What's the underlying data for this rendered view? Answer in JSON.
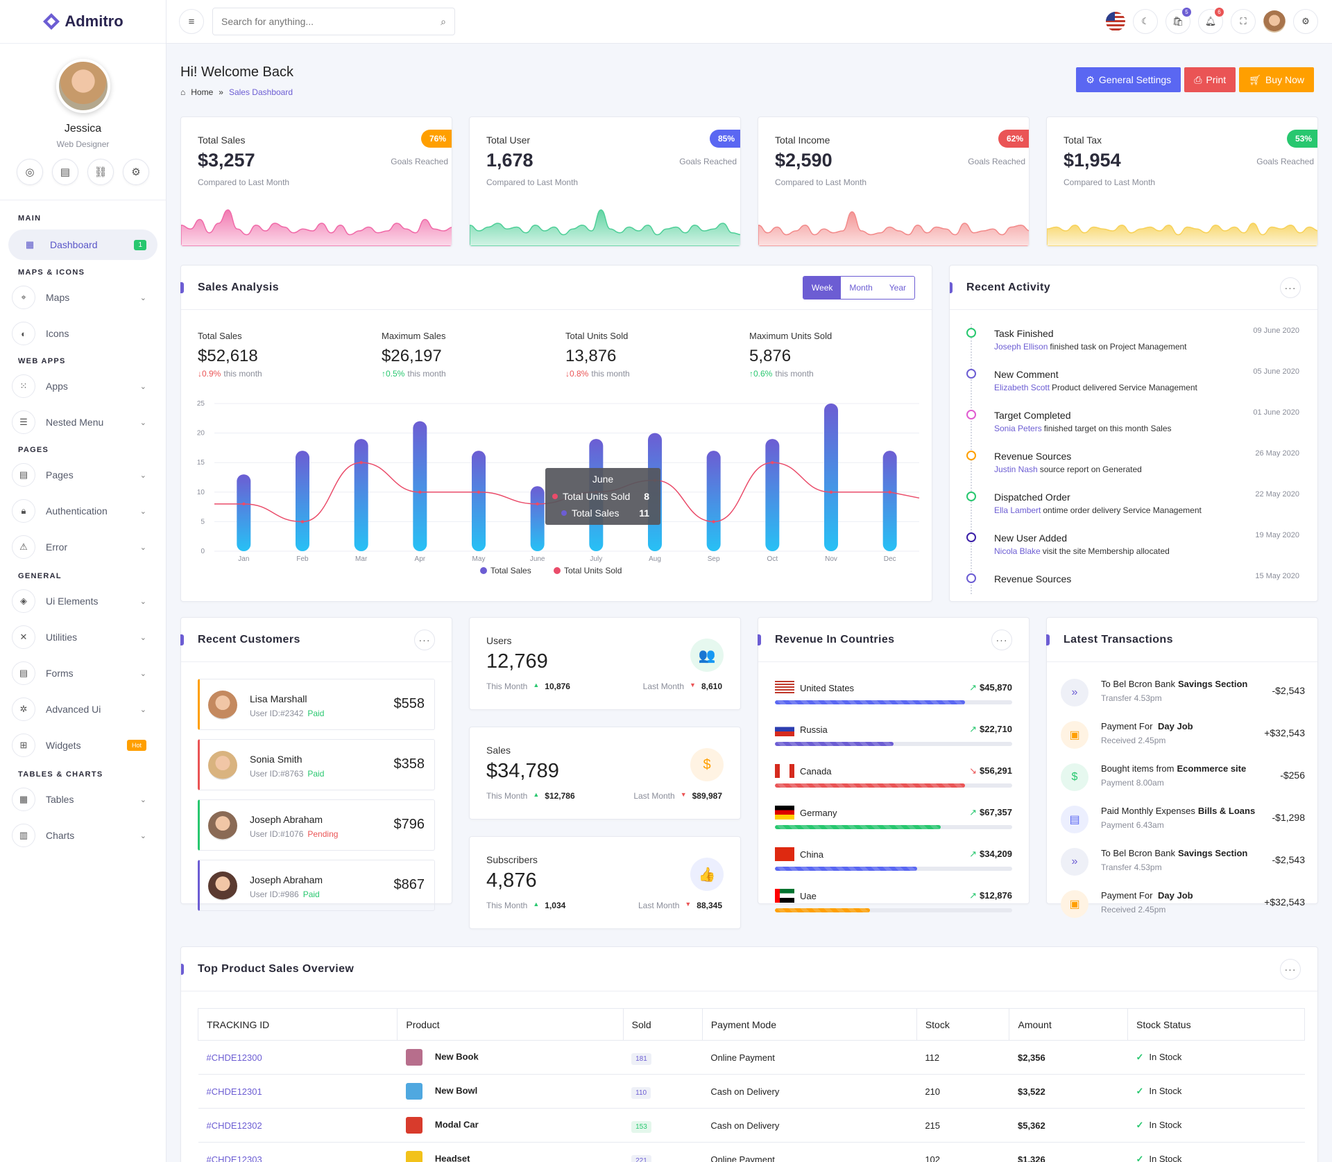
{
  "brand": {
    "name": "Admitro",
    "accent": "#6c5dd3"
  },
  "profile": {
    "name": "Jessica",
    "role": "Web Designer"
  },
  "sidebar": {
    "sections": {
      "main": "MAIN",
      "maps": "MAPS & ICONS",
      "webapps": "WEB APPS",
      "pages": "PAGES",
      "general": "GENERAL",
      "tables": "TABLES & CHARTS"
    },
    "items": {
      "dashboard": "Dashboard",
      "dashboard_badge": "1",
      "maps": "Maps",
      "icons": "Icons",
      "apps": "Apps",
      "nested": "Nested Menu",
      "pages": "Pages",
      "auth": "Authentication",
      "error": "Error",
      "ui": "Ui Elements",
      "utilities": "Utilities",
      "forms": "Forms",
      "advanced": "Advanced Ui",
      "widgets": "Widgets",
      "widgets_badge": "Hot",
      "tables": "Tables",
      "charts": "Charts"
    }
  },
  "topbar": {
    "search_placeholder": "Search for anything...",
    "cart_count": "5",
    "notif_count": "6"
  },
  "page": {
    "title": "Hi! Welcome Back",
    "crumb_home": "Home",
    "crumb_sep": "»",
    "crumb_current": "Sales Dashboard",
    "btn_settings": "General Settings",
    "btn_print": "Print",
    "btn_buy": "Buy Now"
  },
  "stats": [
    {
      "title": "Total Sales",
      "value": "$3,257",
      "sub": "Compared to Last Month",
      "pill": "76%",
      "goal": "Goals Reached",
      "color": "#ff9f00",
      "spark": "#f06aa8"
    },
    {
      "title": "Total User",
      "value": "1,678",
      "sub": "Compared to Last Month",
      "pill": "85%",
      "goal": "Goals Reached",
      "color": "#5a67f2",
      "spark": "#4fcf98"
    },
    {
      "title": "Total Income",
      "value": "$2,590",
      "sub": "Compared to Last Month",
      "pill": "62%",
      "goal": "Goals Reached",
      "color": "#ea5455",
      "spark": "#f28a8a"
    },
    {
      "title": "Total Tax",
      "value": "$1,954",
      "sub": "Compared to Last Month",
      "pill": "53%",
      "goal": "Goals Reached",
      "color": "#28c76f",
      "spark": "#f7d25a"
    }
  ],
  "sales": {
    "title": "Sales Analysis",
    "tabs": [
      "Week",
      "Month",
      "Year"
    ],
    "kpis": [
      {
        "label": "Total Sales",
        "value": "$52,618",
        "change": "0.9%",
        "suffix": "this month",
        "dir": "down"
      },
      {
        "label": "Maximum Sales",
        "value": "$26,197",
        "change": "0.5%",
        "suffix": "this month",
        "dir": "up"
      },
      {
        "label": "Total Units Sold",
        "value": "13,876",
        "change": "0.8%",
        "suffix": "this month",
        "dir": "down"
      },
      {
        "label": "Maximum Units Sold",
        "value": "5,876",
        "change": "0.6%",
        "suffix": "this month",
        "dir": "up"
      }
    ],
    "tooltip": {
      "title": "June",
      "s1": "Total Units Sold",
      "v1": "8",
      "s2": "Total Sales",
      "v2": "11"
    }
  },
  "chart_data": {
    "type": "bar",
    "categories": [
      "Jan",
      "Feb",
      "Mar",
      "Apr",
      "May",
      "June",
      "July",
      "Aug",
      "Sep",
      "Oct",
      "Nov",
      "Dec"
    ],
    "series": [
      {
        "name": "Total Sales",
        "type": "bar",
        "values": [
          13,
          17,
          19,
          22,
          17,
          11,
          19,
          20,
          17,
          19,
          25,
          17
        ],
        "color": "#6c5dd3"
      },
      {
        "name": "Total Units Sold",
        "type": "line",
        "values": [
          8,
          5,
          15,
          10,
          10,
          8,
          10,
          12,
          5,
          15,
          10,
          10
        ],
        "color": "#ea4c6a"
      }
    ],
    "yticks": [
      0,
      5,
      10,
      15,
      20,
      25
    ],
    "ylim": [
      0,
      25
    ],
    "grid": true,
    "legend": "bottom"
  },
  "activity": {
    "title": "Recent Activity",
    "items": [
      {
        "title": "Task Finished",
        "date": "09 June 2020",
        "name": "Joseph Ellison",
        "mid": "finished task on",
        "obj": "Project Management",
        "color": "#28c76f"
      },
      {
        "title": "New Comment",
        "date": "05 June 2020",
        "name": "Elizabeth Scott",
        "mid": "Product delivered",
        "obj": "Service Management",
        "color": "#6c5dd3"
      },
      {
        "title": "Target Completed",
        "date": "01 June 2020",
        "name": "Sonia Peters",
        "mid": "finished target on",
        "obj": "this month Sales",
        "color": "#e05bd0"
      },
      {
        "title": "Revenue Sources",
        "date": "26 May 2020",
        "name": "Justin Nash",
        "mid": "source report on",
        "obj": "Generated",
        "color": "#ff9f00"
      },
      {
        "title": "Dispatched Order",
        "date": "22 May 2020",
        "name": "Ella Lambert",
        "mid": "ontime order delivery",
        "obj": "Service Management",
        "color": "#28c76f"
      },
      {
        "title": "New User Added",
        "date": "19 May 2020",
        "name": "Nicola Blake",
        "mid": "visit the site",
        "obj": "Membership allocated",
        "color": "#3b1fa8"
      },
      {
        "title": "Revenue Sources",
        "date": "15 May 2020",
        "name": "",
        "mid": "",
        "obj": "",
        "color": "#6c5dd3"
      }
    ]
  },
  "customers": {
    "title": "Recent Customers",
    "items": [
      {
        "name": "Lisa Marshall",
        "id": "User ID:#2342",
        "status": "Paid",
        "amount": "$558",
        "color": "#ff9f00",
        "scolor": "#28c76f"
      },
      {
        "name": "Sonia Smith",
        "id": "User ID:#8763",
        "status": "Paid",
        "amount": "$358",
        "color": "#ea5455",
        "scolor": "#28c76f"
      },
      {
        "name": "Joseph Abraham",
        "id": "User ID:#1076",
        "status": "Pending",
        "amount": "$796",
        "color": "#28c76f",
        "scolor": "#ea5455"
      },
      {
        "name": "Joseph Abraham",
        "id": "User ID:#986",
        "status": "Paid",
        "amount": "$867",
        "color": "#6c5dd3",
        "scolor": "#28c76f"
      }
    ]
  },
  "minis": [
    {
      "label": "Users",
      "value": "12,769",
      "this": "This Month",
      "thisv": "10,876",
      "last": "Last Month",
      "lastv": "8,610",
      "icon": "users-icon",
      "bg": "#e6f8ef",
      "fg": "#28c76f",
      "glyph": "👥"
    },
    {
      "label": "Sales",
      "value": "$34,789",
      "this": "This Month",
      "thisv": "$12,786",
      "last": "Last Month",
      "lastv": "$89,987",
      "icon": "money-hand-icon",
      "bg": "#fff3e3",
      "fg": "#ff9f00",
      "glyph": "$"
    },
    {
      "label": "Subscribers",
      "value": "4,876",
      "this": "This Month",
      "thisv": "1,034",
      "last": "Last Month",
      "lastv": "88,345",
      "icon": "thumbs-up-icon",
      "bg": "#eceffe",
      "fg": "#5a67f2",
      "glyph": "👍"
    }
  ],
  "countries": {
    "title": "Revenue In Countries",
    "items": [
      {
        "name": "United States",
        "value": "$45,870",
        "pct": 80,
        "color": "#5a67f2",
        "trend": "up"
      },
      {
        "name": "Russia",
        "value": "$22,710",
        "pct": 50,
        "color": "#6c5dd3",
        "trend": "up"
      },
      {
        "name": "Canada",
        "value": "$56,291",
        "pct": 80,
        "color": "#ea5455",
        "trend": "down"
      },
      {
        "name": "Germany",
        "value": "$67,357",
        "pct": 70,
        "color": "#28c76f",
        "trend": "up"
      },
      {
        "name": "China",
        "value": "$34,209",
        "pct": 60,
        "color": "#5a67f2",
        "trend": "up"
      },
      {
        "name": "Uae",
        "value": "$12,876",
        "pct": 40,
        "color": "#ff9f00",
        "trend": "up"
      }
    ]
  },
  "transactions": {
    "title": "Latest Transactions",
    "items": [
      {
        "t1": "To Bel Bcron Bank",
        "t2": "Savings Section",
        "sub": "Transfer 4.53pm",
        "amount": "-$2,543",
        "icon": "chevrons-right-icon",
        "bg": "#eef0f7",
        "fg": "#6c5dd3",
        "glyph": "»"
      },
      {
        "t1": "Payment For",
        "t2": " Day Job",
        "sub": "Received 2.45pm",
        "amount": "+$32,543",
        "icon": "briefcase-icon",
        "bg": "#fff3e3",
        "fg": "#ff9f00",
        "glyph": "▣"
      },
      {
        "t1": "Bought items from",
        "t2": "Ecommerce site",
        "sub": "Payment 8.00am",
        "amount": "-$256",
        "icon": "dollar-icon",
        "bg": "#e6f8ef",
        "fg": "#28c76f",
        "glyph": "$"
      },
      {
        "t1": "Paid Monthly Expenses",
        "t2": "Bills & Loans",
        "sub": "Payment 6.43am",
        "amount": "-$1,298",
        "icon": "file-icon",
        "bg": "#eceffe",
        "fg": "#5a67f2",
        "glyph": "▤"
      },
      {
        "t1": "To Bel Bcron Bank",
        "t2": "Savings Section",
        "sub": "Transfer 4.53pm",
        "amount": "-$2,543",
        "icon": "chevrons-right-icon",
        "bg": "#eef0f7",
        "fg": "#6c5dd3",
        "glyph": "»"
      },
      {
        "t1": "Payment For",
        "t2": " Day Job",
        "sub": "Received 2.45pm",
        "amount": "+$32,543",
        "icon": "briefcase-icon",
        "bg": "#fff3e3",
        "fg": "#ff9f00",
        "glyph": "▣"
      }
    ]
  },
  "products": {
    "title": "Top Product Sales Overview",
    "headers": [
      "TRACKING ID",
      "Product",
      "Sold",
      "Payment Mode",
      "Stock",
      "Amount",
      "Stock Status"
    ],
    "rows": [
      {
        "id": "#CHDE12300",
        "product": "New Book",
        "sold": "181",
        "mode": "Online Payment",
        "stock": "112",
        "amount": "$2,356",
        "status": "In Stock",
        "img": "#b76e8c",
        "green": false
      },
      {
        "id": "#CHDE12301",
        "product": "New Bowl",
        "sold": "110",
        "mode": "Cash on Delivery",
        "stock": "210",
        "amount": "$3,522",
        "status": "In Stock",
        "img": "#4fa8e0",
        "green": false
      },
      {
        "id": "#CHDE12302",
        "product": "Modal Car",
        "sold": "153",
        "mode": "Cash on Delivery",
        "stock": "215",
        "amount": "$5,362",
        "status": "In Stock",
        "img": "#d83b2c",
        "green": true
      },
      {
        "id": "#CHDE12303",
        "product": "Headset",
        "sold": "221",
        "mode": "Online Payment",
        "stock": "102",
        "amount": "$1,326",
        "status": "In Stock",
        "img": "#f2c21a",
        "green": false
      }
    ]
  }
}
